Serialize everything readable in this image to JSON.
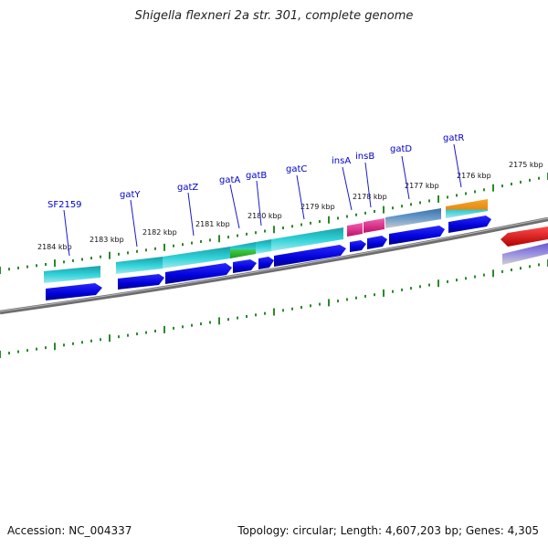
{
  "title": "Shigella flexneri 2a str. 301, complete genome",
  "footer": {
    "accession": "Accession: NC_004337",
    "summary": "Topology: circular; Length: 4,607,203 bp; Genes: 4,305"
  },
  "ticks": [
    {
      "label": "2184 kbp"
    },
    {
      "label": "2183 kbp"
    },
    {
      "label": "2182 kbp"
    },
    {
      "label": "2181 kbp"
    },
    {
      "label": "2180 kbp"
    },
    {
      "label": "2179 kbp"
    },
    {
      "label": "2178 kbp"
    },
    {
      "label": "2177 kbp"
    },
    {
      "label": "2176 kbp"
    },
    {
      "label": "2175 kbp"
    }
  ],
  "genes": [
    {
      "name": "SF2159"
    },
    {
      "name": "gatY"
    },
    {
      "name": "gatZ"
    },
    {
      "name": "gatA"
    },
    {
      "name": "gatB"
    },
    {
      "name": "gatC"
    },
    {
      "name": "insA"
    },
    {
      "name": "insB"
    },
    {
      "name": "gatD"
    },
    {
      "name": "gatR"
    }
  ],
  "colors": {
    "backbone": "#7a7a7a",
    "tick": "#2a8a2a",
    "cds": "#0000dd",
    "cyan_feature": "#22c4cc",
    "insertion": "#e0208a",
    "steel_feature": "#4a82b8",
    "orange_feature": "#f29a1a",
    "green_feature": "#33bb33",
    "red_feature": "#e01010",
    "purple_feature": "#7a6ad0",
    "label_blue": "#0000cc"
  }
}
